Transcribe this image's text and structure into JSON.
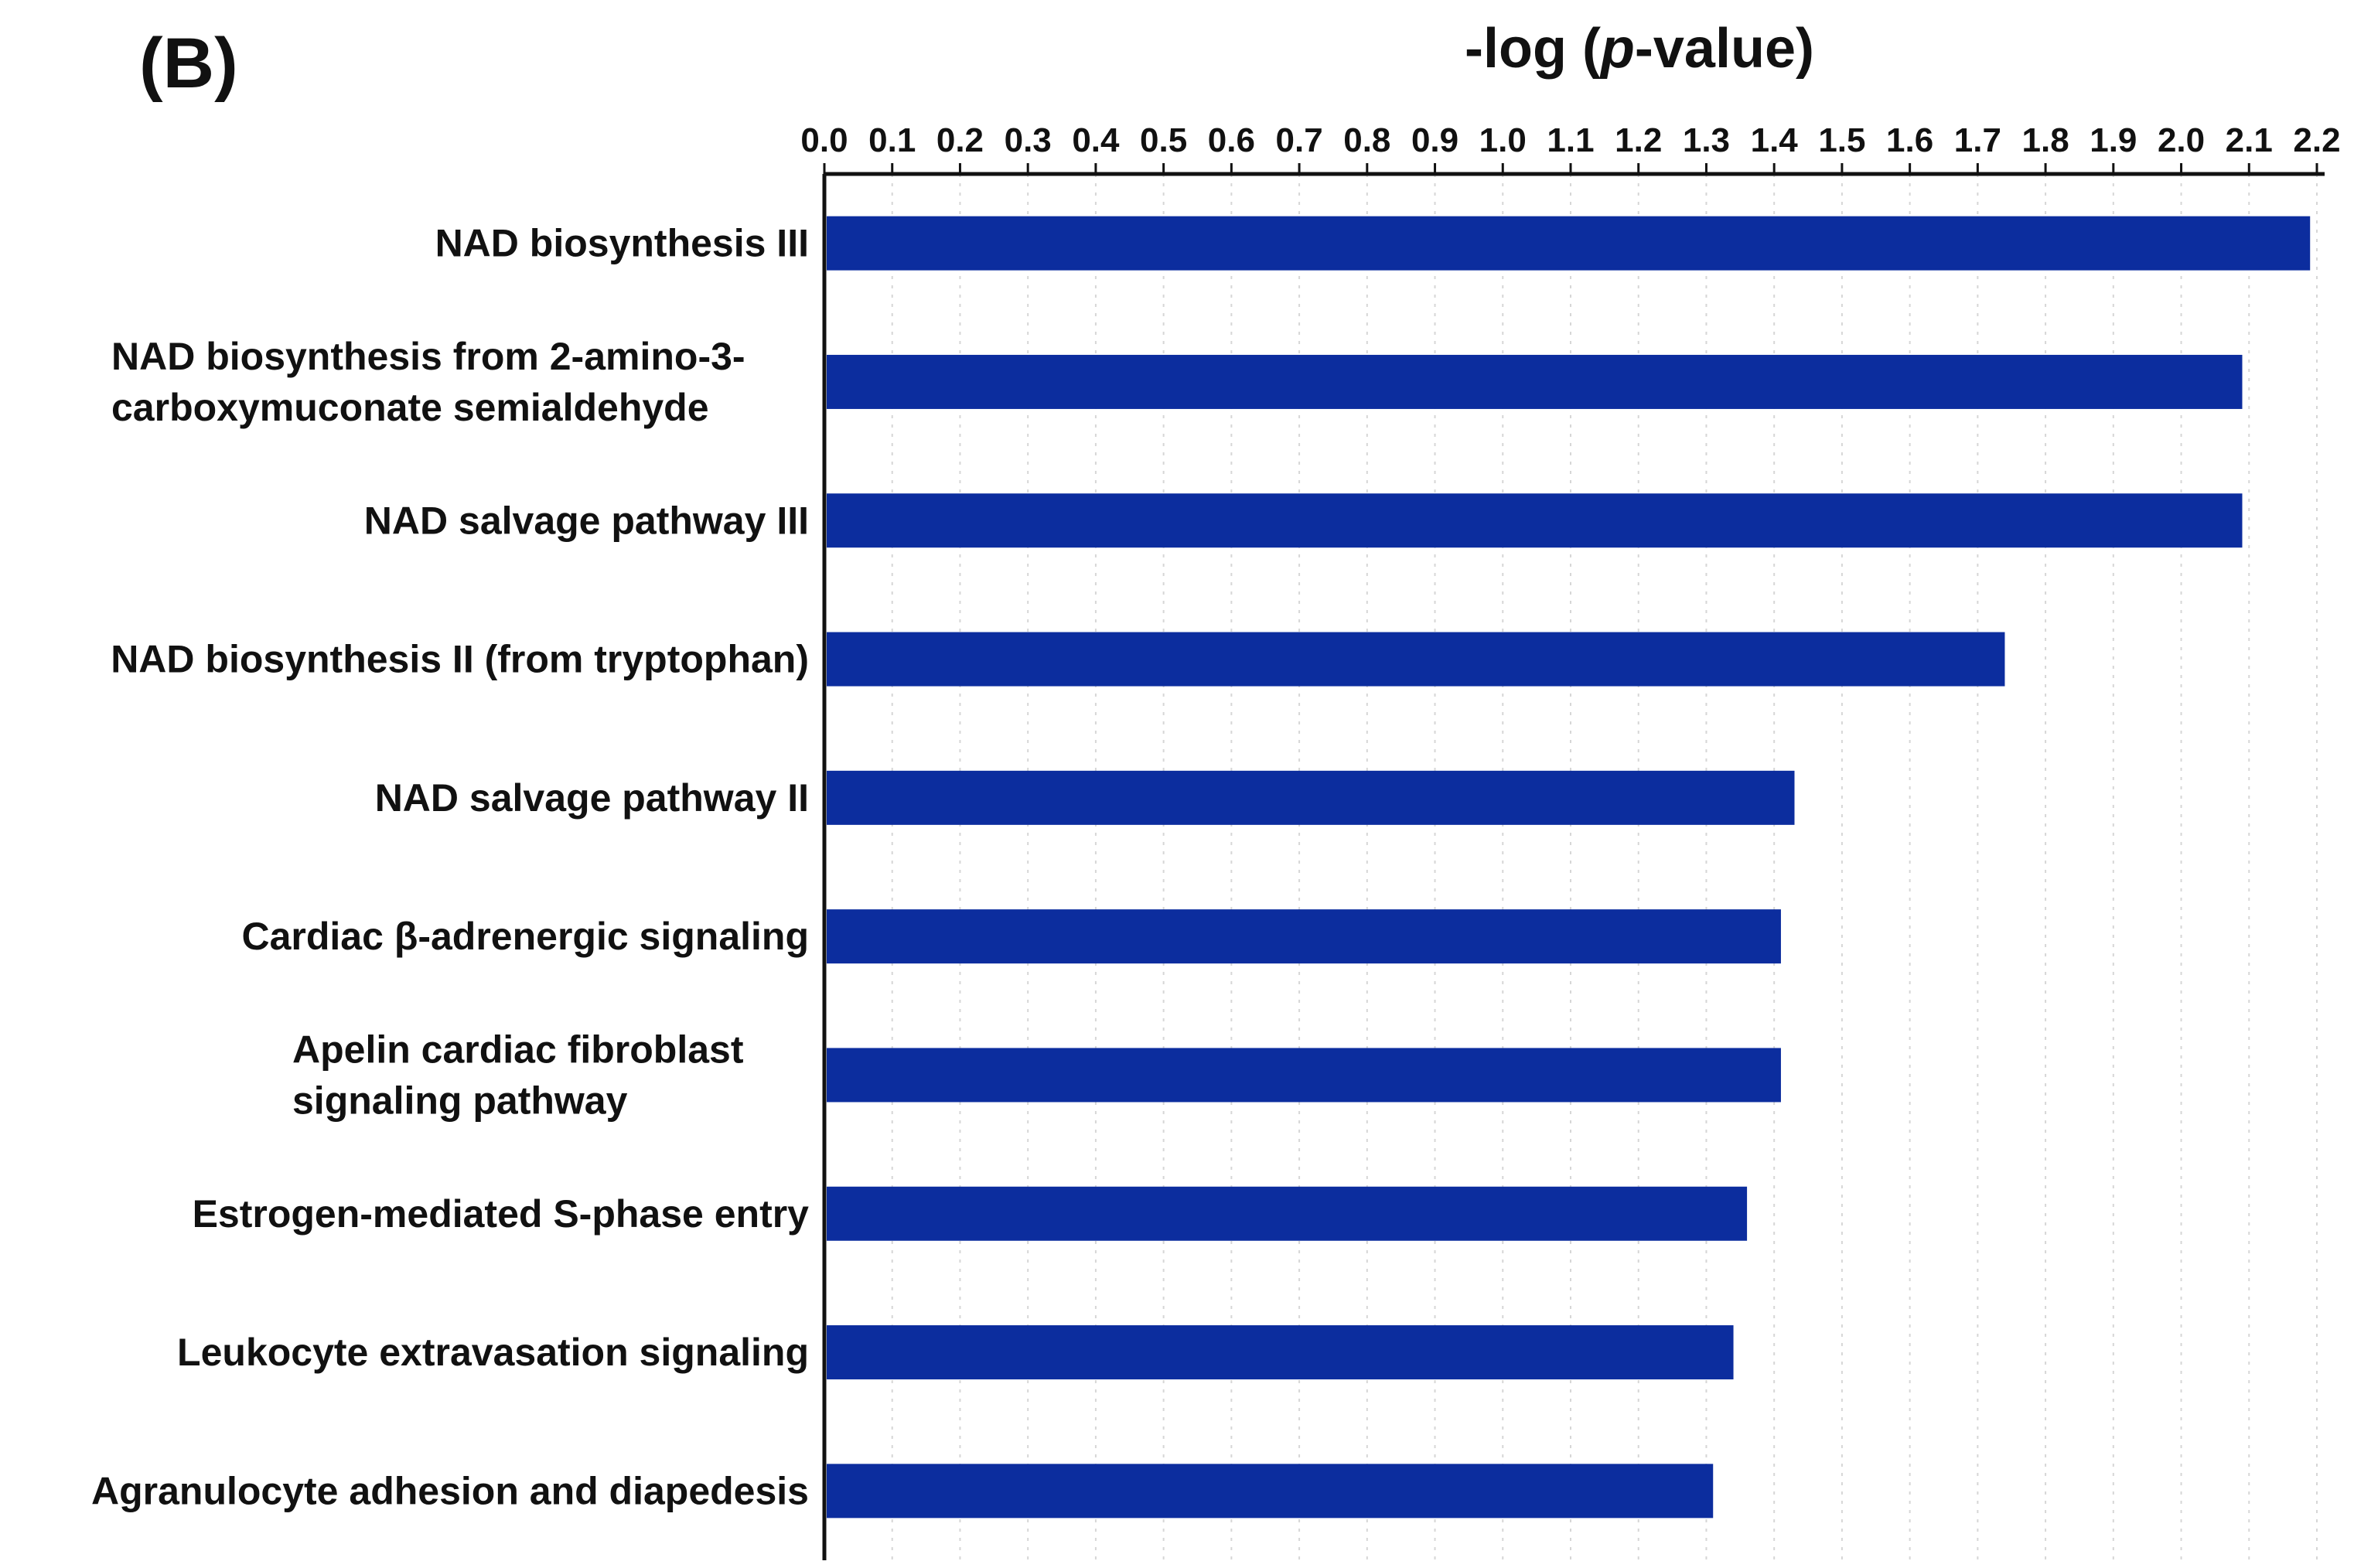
{
  "panel_label": "(B)",
  "chart_data": {
    "type": "bar",
    "orientation": "horizontal",
    "title": "-log (p-value)",
    "title_parts": [
      "-log (",
      "p",
      "-value)"
    ],
    "xlabel": "-log (p-value)",
    "ylabel": "",
    "xlim": [
      0,
      2.2
    ],
    "x_axis_position": "top",
    "x_ticks": [
      "0.0",
      "0.1",
      "0.2",
      "0.3",
      "0.4",
      "0.5",
      "0.6",
      "0.7",
      "0.8",
      "0.9",
      "1.0",
      "1.1",
      "1.2",
      "1.3",
      "1.4",
      "1.5",
      "1.6",
      "1.7",
      "1.8",
      "1.9",
      "2.0",
      "2.1",
      "2.2"
    ],
    "grid": "vertical dotted",
    "legend": "none",
    "bar_color": "#0c2d9e",
    "categories": [
      [
        "NAD biosynthesis III"
      ],
      [
        "NAD biosynthesis from 2-amino-3-",
        "carboxymuconate semialdehyde"
      ],
      [
        "NAD salvage pathway III"
      ],
      [
        "NAD biosynthesis II (from tryptophan)"
      ],
      [
        "NAD salvage pathway II"
      ],
      [
        "Cardiac β-adrenergic signaling"
      ],
      [
        "Apelin cardiac fibroblast",
        "signaling pathway"
      ],
      [
        "Estrogen-mediated S-phase entry"
      ],
      [
        "Leukocyte extravasation signaling"
      ],
      [
        "Agranulocyte adhesion and diapedesis"
      ]
    ],
    "values": [
      2.19,
      2.09,
      2.09,
      1.74,
      1.43,
      1.41,
      1.41,
      1.36,
      1.34,
      1.31
    ]
  }
}
